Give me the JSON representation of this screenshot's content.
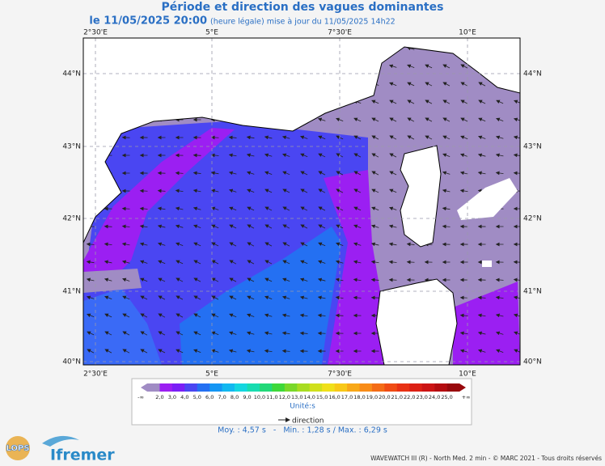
{
  "header": {
    "title": "Période et direction des vagues dominantes",
    "date": "le 11/05/2025 20:00",
    "note": "(heure légale) mise à jour du 11/05/2025 14h22"
  },
  "map": {
    "lon_labels": [
      "2°30'E",
      "5°E",
      "7°30'E",
      "10°E"
    ],
    "lat_labels": [
      "44°N",
      "43°N",
      "42°N",
      "41°N",
      "40°N"
    ]
  },
  "legend": {
    "labels": [
      "-∞",
      "2,0",
      "3,0",
      "4,0",
      "5,0",
      "6,0",
      "7,0",
      "8,0",
      "9,0",
      "10,0",
      "11,0",
      "12,0",
      "13,0",
      "14,0",
      "15,0",
      "16,0",
      "17,0",
      "18,0",
      "19,0",
      "20,0",
      "21,0",
      "22,0",
      "23,0",
      "24,0",
      "25,0",
      "+∞"
    ],
    "colors": [
      "#a08cc4",
      "#9b1ff2",
      "#7a1ff6",
      "#4a46f2",
      "#2470f2",
      "#1496f4",
      "#12b8f0",
      "#14d6e0",
      "#18dcb0",
      "#22d878",
      "#3ed83a",
      "#7ad82a",
      "#a8dc22",
      "#d0e01c",
      "#f0e01a",
      "#f8c818",
      "#f8a818",
      "#f88c18",
      "#f46c16",
      "#f04c14",
      "#e83214",
      "#dc2014",
      "#cc1414",
      "#b40c10",
      "#98080c"
    ],
    "unit": "Unité:s",
    "arrow_label": "direction"
  },
  "stats": "Moy. : 4,57 s   -   Min. : 1,28 s / Max. : 6,29 s",
  "logos": {
    "left": "LOPS",
    "right": "Ifremer"
  },
  "footer": "WAVEWATCH III (R) - North Med. 2 min - © MARC 2021 - Tous droits réservés"
}
